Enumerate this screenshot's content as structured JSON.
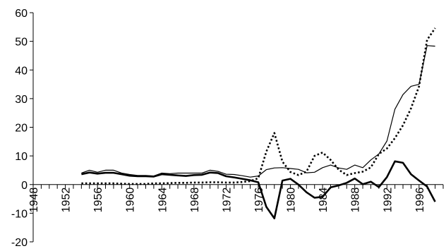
{
  "chart_data": {
    "type": "line",
    "title": "",
    "xlabel": "",
    "ylabel": "",
    "ylim": [
      -20,
      60
    ],
    "xlim": [
      1948,
      1999
    ],
    "y_ticks": [
      -20,
      -10,
      0,
      10,
      20,
      30,
      40,
      50,
      60
    ],
    "x_ticks": [
      1948,
      1952,
      1956,
      1960,
      1964,
      1968,
      1972,
      1976,
      1980,
      1984,
      1988,
      1992,
      1996
    ],
    "grid": false,
    "legend": "none",
    "series": [
      {
        "style": "thin-solid",
        "color": "#000000",
        "x": [
          1954,
          1955,
          1956,
          1957,
          1958,
          1959,
          1960,
          1961,
          1962,
          1963,
          1964,
          1965,
          1966,
          1967,
          1968,
          1969,
          1970,
          1971,
          1972,
          1973,
          1974,
          1975,
          1976,
          1977,
          1978,
          1979,
          1980,
          1981,
          1982,
          1983,
          1984,
          1985,
          1986,
          1987,
          1988,
          1989,
          1990,
          1991,
          1992,
          1993,
          1994,
          1995,
          1996,
          1997,
          1998
        ],
        "values": [
          4,
          5,
          4.3,
          5,
          5,
          4,
          3.5,
          3.2,
          3.2,
          3,
          4,
          3.8,
          4,
          4,
          4,
          4,
          5,
          4.6,
          3.6,
          3.5,
          3.1,
          2.6,
          3,
          5.2,
          5.8,
          5.9,
          5.6,
          5.3,
          4.1,
          4.3,
          5.9,
          6.8,
          5.8,
          5.3,
          6.8,
          5.9,
          8.6,
          10.7,
          15.2,
          26.3,
          31.4,
          34.3,
          35,
          48.5,
          48.3
        ]
      },
      {
        "style": "dotted",
        "color": "#000000",
        "x": [
          1954,
          1955,
          1956,
          1957,
          1958,
          1959,
          1960,
          1961,
          1962,
          1963,
          1964,
          1965,
          1966,
          1967,
          1968,
          1969,
          1970,
          1971,
          1972,
          1973,
          1974,
          1975,
          1976,
          1977,
          1978,
          1979,
          1980,
          1981,
          1982,
          1983,
          1984,
          1985,
          1986,
          1987,
          1988,
          1989,
          1990,
          1991,
          1992,
          1993,
          1994,
          1995,
          1996,
          1997,
          1998
        ],
        "values": [
          0.4,
          0.4,
          0.4,
          0.4,
          0.4,
          0.3,
          0.2,
          0.2,
          0.2,
          0.4,
          0.4,
          0.5,
          0.6,
          0.6,
          0.7,
          0.7,
          0.8,
          0.8,
          0.7,
          0.7,
          0.9,
          1.2,
          2.2,
          11.5,
          18,
          8,
          4.4,
          3.3,
          4.5,
          10,
          11.2,
          8.6,
          5.2,
          3.3,
          4,
          4.5,
          6,
          10.7,
          12.6,
          16.2,
          20.7,
          26.6,
          34.3,
          50.5,
          54.6
        ]
      },
      {
        "style": "thick-solid",
        "color": "#000000",
        "x": [
          1954,
          1955,
          1956,
          1957,
          1958,
          1959,
          1960,
          1961,
          1962,
          1963,
          1964,
          1965,
          1966,
          1967,
          1968,
          1969,
          1970,
          1971,
          1972,
          1973,
          1974,
          1975,
          1976,
          1977,
          1978,
          1979,
          1980,
          1981,
          1982,
          1983,
          1984,
          1985,
          1986,
          1987,
          1988,
          1989,
          1990,
          1991,
          1992,
          1993,
          1994,
          1995,
          1996,
          1997,
          1998
        ],
        "values": [
          3.6,
          4.2,
          3.8,
          4.1,
          4.1,
          3.6,
          3.1,
          2.9,
          2.9,
          2.8,
          3.6,
          3.4,
          3.2,
          3,
          3.3,
          3.4,
          4.2,
          4,
          2.9,
          2.5,
          2,
          1.5,
          0.8,
          -7.8,
          -11.8,
          1.4,
          2,
          0,
          -2.7,
          -4.6,
          -4.3,
          -1,
          -0.3,
          0.6,
          2.1,
          0.1,
          1,
          -0.9,
          2.6,
          8.1,
          7.6,
          3.6,
          1.4,
          -0.7,
          -6
        ]
      }
    ]
  }
}
